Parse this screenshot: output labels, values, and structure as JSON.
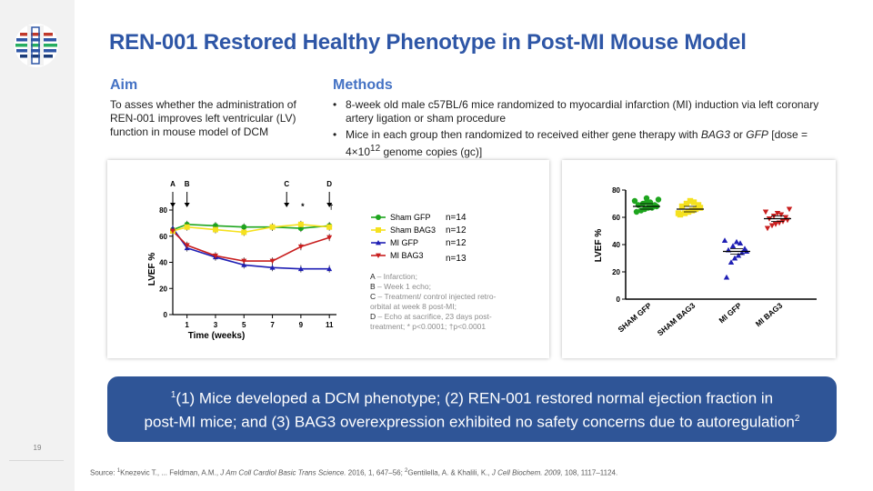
{
  "slide": {
    "title": "REN-001 Restored Healthy Phenotype in Post-MI Mouse Model",
    "page_number": "19"
  },
  "aim": {
    "heading": "Aim",
    "text": "To asses whether the administration of REN-001 improves left ventricular (LV) function in mouse model of DCM"
  },
  "methods": {
    "heading": "Methods",
    "bullet1": "8-week old male c57BL/6 mice randomized to myocardial infarction (MI) induction via left coronary artery ligation or sham procedure",
    "bullet2_pre": "Mice in each group then randomized to received either gene therapy with ",
    "bullet2_gene1": "BAG3",
    "bullet2_or": " or ",
    "bullet2_gene2": "GFP",
    "bullet2_dose_pre": " [dose = 4×10",
    "bullet2_exp": "12",
    "bullet2_dose_post": " genome copies (gc)]"
  },
  "colors": {
    "title": "#2e56a6",
    "heading": "#4472c4",
    "callout_bg": "#2f5597",
    "sham_gfp": "#1ea51e",
    "sham_bag3": "#f5e11f",
    "mi_gfp": "#1f1fb4",
    "mi_bag3": "#c81e1e"
  },
  "chart_data": [
    {
      "type": "line",
      "title": "",
      "xlabel": "Time (weeks)",
      "ylabel": "LVEF %",
      "x": [
        0,
        1,
        3,
        5,
        7,
        9,
        11
      ],
      "x_ticks": [
        1,
        3,
        5,
        7,
        9,
        11
      ],
      "y_ticks": [
        0,
        20,
        40,
        60,
        80
      ],
      "xlim": [
        0,
        11.5
      ],
      "ylim": [
        0,
        80
      ],
      "series": [
        {
          "name": "Sham GFP",
          "n": "n=14",
          "values": [
            65,
            69,
            68,
            67,
            67,
            66,
            68
          ]
        },
        {
          "name": "Sham BAG3",
          "n": "n=12",
          "values": [
            64,
            67,
            65,
            63,
            67,
            69,
            67
          ]
        },
        {
          "name": "MI GFP",
          "n": "n=12",
          "values": [
            66,
            51,
            44,
            38,
            36,
            35,
            35
          ]
        },
        {
          "name": "MI BAG3",
          "n": "n=13",
          "values": [
            64,
            53,
            45,
            41,
            41,
            52,
            59
          ]
        }
      ],
      "event_markers": [
        {
          "label": "A",
          "x": 0
        },
        {
          "label": "B",
          "x": 1
        },
        {
          "label": "C",
          "x": 8
        },
        {
          "label": "D",
          "x": 11
        }
      ],
      "significance": [
        {
          "symbol": "*",
          "x": 9
        },
        {
          "symbol": "†",
          "x": 11
        }
      ],
      "annotations": [
        {
          "key": "A",
          "text": " – Infarction;"
        },
        {
          "key": "B",
          "text": " – Week 1 echo;"
        },
        {
          "key": "C",
          "text": " – Treatment/ control injected retro-orbital at week 8 post-MI;"
        },
        {
          "key": "D",
          "text": " – Echo at sacrifice, 23 days post-treatment; * p<0.0001; †p<0.0001"
        }
      ]
    },
    {
      "type": "scatter",
      "title": "",
      "xlabel": "",
      "ylabel": "LVEF %",
      "categories": [
        "SHAM GFP",
        "SHAM BAG3",
        "MI GFP",
        "MI BAG3"
      ],
      "y_ticks": [
        0,
        20,
        40,
        60,
        80
      ],
      "ylim": [
        0,
        80
      ],
      "series": [
        {
          "name": "SHAM GFP",
          "mean": 68,
          "points": [
            64,
            65,
            66,
            67,
            67,
            68,
            69,
            69,
            70,
            71,
            71,
            72,
            73,
            74
          ]
        },
        {
          "name": "SHAM BAG3",
          "mean": 66,
          "points": [
            62,
            63,
            64,
            65,
            66,
            67,
            68,
            69,
            70,
            71,
            72,
            63
          ]
        },
        {
          "name": "MI GFP",
          "mean": 35,
          "points": [
            16,
            27,
            30,
            32,
            34,
            35,
            36,
            37,
            39,
            41,
            42,
            43
          ]
        },
        {
          "name": "MI BAG3",
          "mean": 59,
          "points": [
            52,
            54,
            55,
            56,
            57,
            58,
            59,
            60,
            61,
            62,
            63,
            64,
            66
          ]
        }
      ]
    }
  ],
  "callout": {
    "sup1": "1",
    "line1": "(1) Mice developed a DCM phenotype; (2) REN-001 restored normal ejection fraction in",
    "line2": "post-MI mice; and (3) BAG3 overexpression exhibited no safety concerns due to autoregulation",
    "sup2": "2"
  },
  "source": {
    "prefix": "Source: ",
    "sup1": "1",
    "ref1_authors": "Knezevic T., ... Feldman, A.M., ",
    "ref1_journal": "J Am Coll Cardiol Basic Trans Science.",
    "ref1_detail": " 2016, 1, 647–56; ",
    "sup2": "2",
    "ref2_authors": "Gentilella, A. & Khalili, K., ",
    "ref2_journal": "J Cell Biochem. 2009,",
    "ref2_detail": " 108, 1117–1124."
  }
}
